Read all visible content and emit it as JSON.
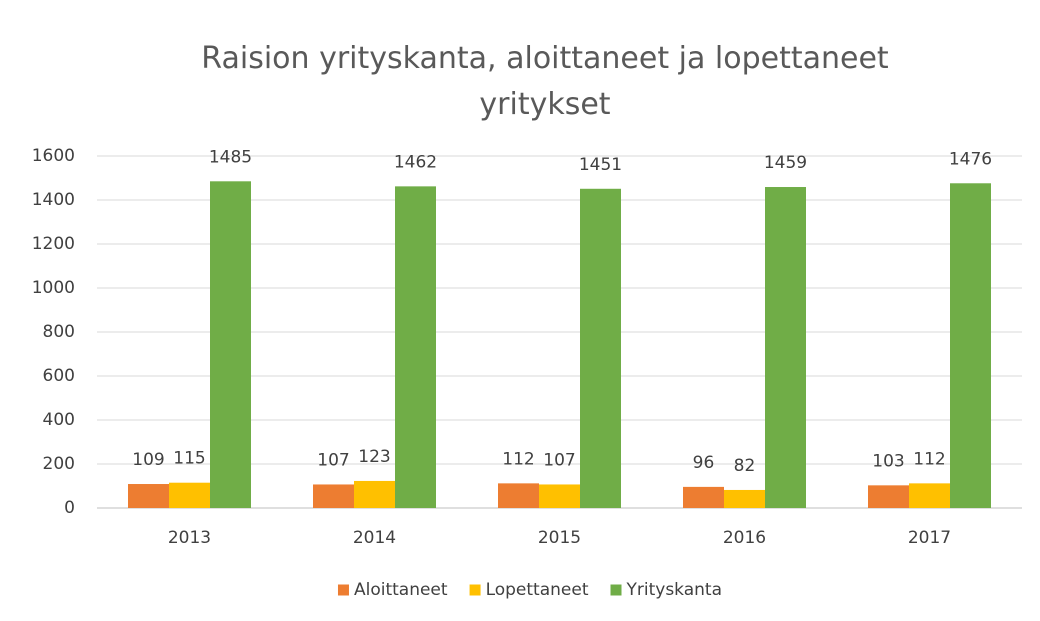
{
  "chart_data": {
    "type": "bar",
    "title": "Raision yrityskanta, aloittaneet ja lopettaneet yritykset",
    "categories": [
      "2013",
      "2014",
      "2015",
      "2016",
      "2017"
    ],
    "series": [
      {
        "name": "Aloittaneet",
        "color": "#ed7d31",
        "values": [
          109,
          107,
          112,
          96,
          103
        ]
      },
      {
        "name": "Lopettaneet",
        "color": "#ffc000",
        "values": [
          115,
          123,
          107,
          82,
          112
        ]
      },
      {
        "name": "Yrityskanta",
        "color": "#70ad47",
        "values": [
          1485,
          1462,
          1451,
          1459,
          1476
        ]
      }
    ],
    "ylim": [
      0,
      1600
    ],
    "yticks": [
      0,
      200,
      400,
      600,
      800,
      1000,
      1200,
      1400,
      1600
    ],
    "grid": true,
    "legend": "bottom"
  }
}
